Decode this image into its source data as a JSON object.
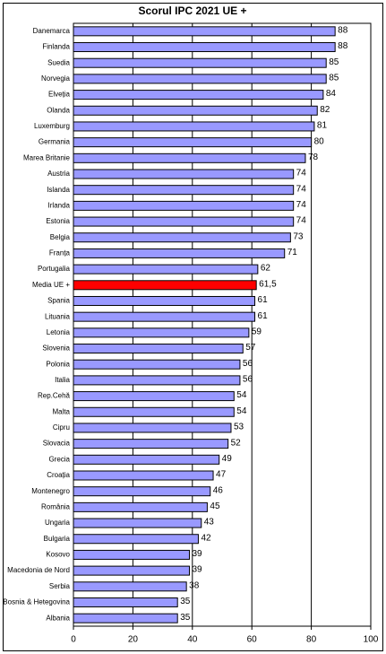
{
  "chart_data": {
    "type": "bar",
    "orientation": "horizontal",
    "title": "Scorul IPC 2021 UE +",
    "categories": [
      "Danemarca",
      "Finlanda",
      "Suedia",
      "Norvegia",
      "Elveția",
      "Olanda",
      "Luxemburg",
      "Germania",
      "Marea Britanie",
      "Austria",
      "Islanda",
      "Irlanda",
      "Estonia",
      "Belgia",
      "Franța",
      "Portugalia",
      "Media UE +",
      "Spania",
      "Lituania",
      "Letonia",
      "Slovenia",
      "Polonia",
      "Italia",
      "Rep.Cehă",
      "Malta",
      "Cipru",
      "Slovacia",
      "Grecia",
      "Croația",
      "Montenegro",
      "România",
      "Ungaria",
      "Bulgaria",
      "Kosovo",
      "Macedonia de Nord",
      "Serbia",
      "Bosnia & Hetegovina",
      "Albania"
    ],
    "values": [
      88,
      88,
      85,
      85,
      84,
      82,
      81,
      80,
      78,
      74,
      74,
      74,
      74,
      73,
      71,
      62,
      61.5,
      61,
      61,
      59,
      57,
      56,
      56,
      54,
      54,
      53,
      52,
      49,
      47,
      46,
      45,
      43,
      42,
      39,
      39,
      38,
      35,
      35
    ],
    "value_labels": [
      "88",
      "88",
      "85",
      "85",
      "84",
      "82",
      "81",
      "80",
      "78",
      "74",
      "74",
      "74",
      "74",
      "73",
      "71",
      "62",
      "61,5",
      "61",
      "61",
      "59",
      "57",
      "56",
      "56",
      "54",
      "54",
      "53",
      "52",
      "49",
      "47",
      "46",
      "45",
      "43",
      "42",
      "39",
      "39",
      "38",
      "35",
      "35"
    ],
    "colors": [
      "#9999ff",
      "#9999ff",
      "#9999ff",
      "#9999ff",
      "#9999ff",
      "#9999ff",
      "#9999ff",
      "#9999ff",
      "#9999ff",
      "#9999ff",
      "#9999ff",
      "#9999ff",
      "#9999ff",
      "#9999ff",
      "#9999ff",
      "#9999ff",
      "#ff0000",
      "#9999ff",
      "#9999ff",
      "#9999ff",
      "#9999ff",
      "#9999ff",
      "#9999ff",
      "#9999ff",
      "#9999ff",
      "#9999ff",
      "#9999ff",
      "#9999ff",
      "#9999ff",
      "#9999ff",
      "#9999ff",
      "#9999ff",
      "#9999ff",
      "#9999ff",
      "#9999ff",
      "#9999ff",
      "#9999ff",
      "#9999ff"
    ],
    "xlim": [
      0,
      100
    ],
    "xticks": [
      0,
      20,
      40,
      60,
      80,
      100
    ],
    "grid": true
  }
}
